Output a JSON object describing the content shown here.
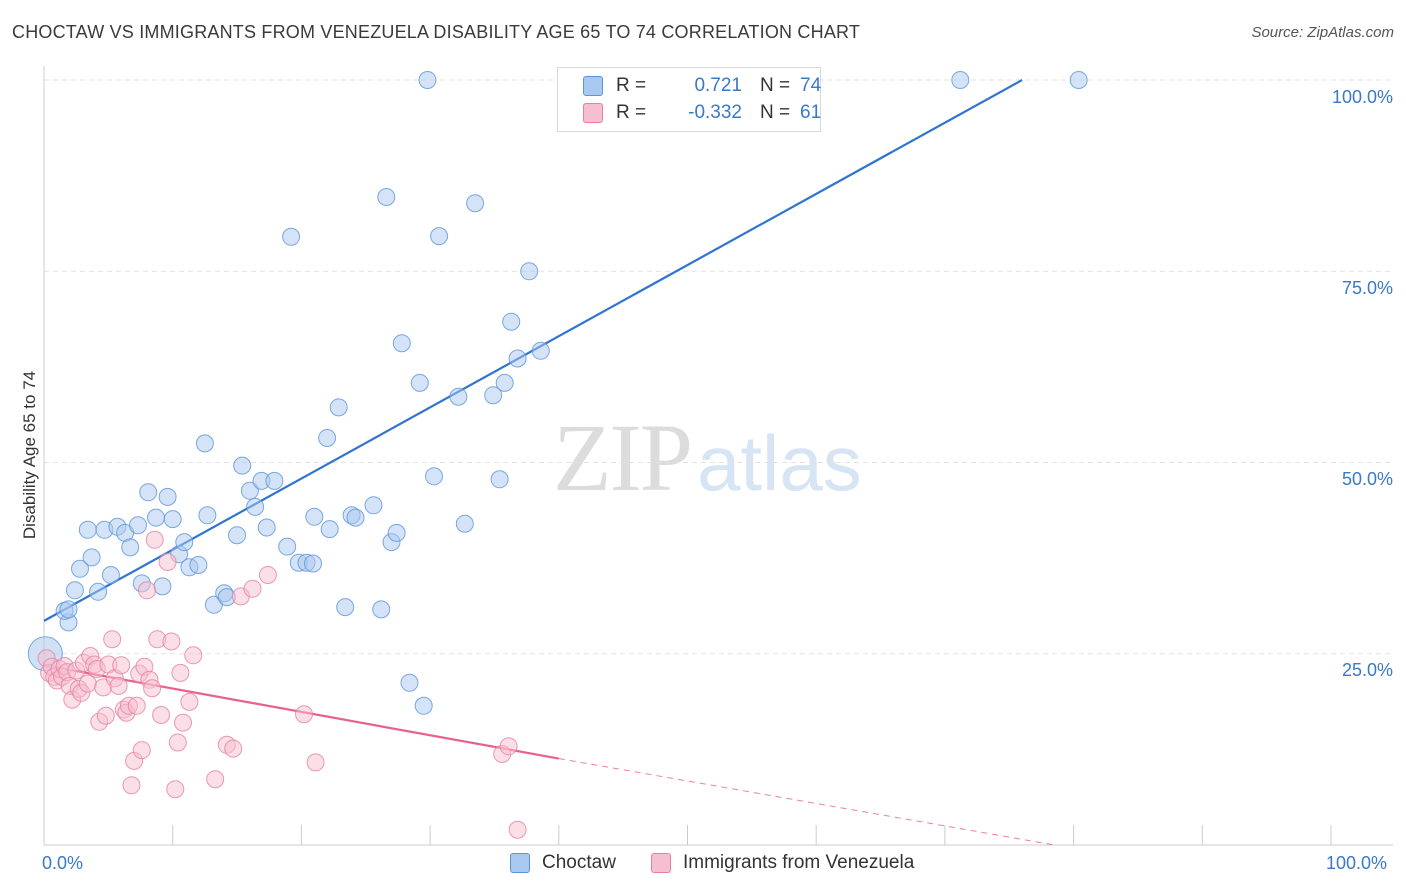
{
  "title": "CHOCTAW VS IMMIGRANTS FROM VENEZUELA DISABILITY AGE 65 TO 74 CORRELATION CHART",
  "source": "Source: ZipAtlas.com",
  "watermark": {
    "zip": "ZIP",
    "atlas": "atlas"
  },
  "legend": {
    "rows": [
      {
        "r_label": "R =",
        "r_value": "0.721",
        "n_label": "N =",
        "n_value": "74",
        "color": "#a9c8ef"
      },
      {
        "r_label": "R =",
        "r_value": "-0.332",
        "n_label": "N =",
        "n_value": "61",
        "color": "#f6bfd0"
      }
    ]
  },
  "bottom_legend": [
    {
      "label": "Choctaw",
      "color": "#a9c8ef"
    },
    {
      "label": "Immigrants from Venezuela",
      "color": "#f6bfd0"
    }
  ],
  "axes": {
    "ylabel": "Disability Age 65 to 74",
    "x_min_label": "0.0%",
    "x_max_label": "100.0%",
    "y_ticks": [
      "100.0%",
      "75.0%",
      "50.0%",
      "25.0%"
    ]
  },
  "chart_data": {
    "type": "scatter",
    "title": "CHOCTAW VS IMMIGRANTS FROM VENEZUELA DISABILITY AGE 65 TO 74 CORRELATION CHART",
    "xlabel": "",
    "ylabel": "Disability Age 65 to 74",
    "xlim": [
      0,
      100
    ],
    "ylim": [
      0,
      100
    ],
    "grid": true,
    "legend_position": "top-center",
    "series": [
      {
        "name": "Choctaw",
        "color": "#a9c8ef",
        "stroke": "#5b95d8",
        "trend": {
          "x": [
            0,
            76
          ],
          "y": [
            29.3,
            100
          ],
          "color": "#2f74cf"
        },
        "points": [
          [
            0.1,
            25.0
          ],
          [
            1.9,
            29.1
          ],
          [
            1.6,
            30.6
          ],
          [
            1.9,
            30.8
          ],
          [
            2.4,
            33.3
          ],
          [
            2.8,
            36.1
          ],
          [
            3.4,
            41.2
          ],
          [
            3.7,
            37.6
          ],
          [
            4.2,
            33.1
          ],
          [
            4.7,
            41.2
          ],
          [
            5.2,
            35.3
          ],
          [
            5.7,
            41.6
          ],
          [
            6.3,
            40.8
          ],
          [
            6.7,
            38.9
          ],
          [
            7.3,
            41.8
          ],
          [
            7.6,
            34.2
          ],
          [
            8.1,
            46.1
          ],
          [
            8.7,
            42.8
          ],
          [
            9.2,
            33.8
          ],
          [
            9.6,
            45.5
          ],
          [
            10.0,
            42.6
          ],
          [
            10.5,
            38.0
          ],
          [
            10.9,
            39.6
          ],
          [
            11.3,
            36.3
          ],
          [
            12.0,
            36.6
          ],
          [
            12.5,
            52.5
          ],
          [
            12.7,
            43.1
          ],
          [
            13.2,
            31.4
          ],
          [
            14.0,
            32.9
          ],
          [
            14.2,
            32.4
          ],
          [
            15.0,
            40.5
          ],
          [
            15.4,
            49.6
          ],
          [
            16.0,
            46.3
          ],
          [
            16.4,
            44.2
          ],
          [
            16.9,
            47.6
          ],
          [
            17.3,
            41.5
          ],
          [
            17.9,
            47.6
          ],
          [
            18.9,
            39.0
          ],
          [
            19.2,
            79.5
          ],
          [
            19.8,
            36.9
          ],
          [
            20.4,
            36.9
          ],
          [
            20.9,
            36.8
          ],
          [
            21.0,
            42.9
          ],
          [
            22.0,
            53.2
          ],
          [
            22.2,
            41.3
          ],
          [
            22.9,
            57.2
          ],
          [
            23.4,
            31.1
          ],
          [
            23.9,
            43.1
          ],
          [
            24.2,
            42.8
          ],
          [
            25.6,
            44.4
          ],
          [
            26.2,
            30.8
          ],
          [
            26.6,
            84.7
          ],
          [
            27.0,
            39.6
          ],
          [
            27.4,
            40.8
          ],
          [
            27.8,
            65.6
          ],
          [
            28.4,
            21.2
          ],
          [
            29.2,
            60.4
          ],
          [
            29.8,
            100
          ],
          [
            30.3,
            48.2
          ],
          [
            30.7,
            79.6
          ],
          [
            29.5,
            18.2
          ],
          [
            32.2,
            58.6
          ],
          [
            32.7,
            42.0
          ],
          [
            33.5,
            83.9
          ],
          [
            34.9,
            58.8
          ],
          [
            35.4,
            47.8
          ],
          [
            35.8,
            60.4
          ],
          [
            36.3,
            68.4
          ],
          [
            36.8,
            63.6
          ],
          [
            37.7,
            75.0
          ],
          [
            38.6,
            64.6
          ],
          [
            43.1,
            100
          ],
          [
            71.2,
            100
          ],
          [
            80.4,
            100
          ]
        ]
      },
      {
        "name": "Immigrants from Venezuela",
        "color": "#f6bfd0",
        "stroke": "#e87fa2",
        "trend": {
          "x": [
            0,
            40
          ],
          "y": [
            23.5,
            11.3
          ],
          "color": "#e8608d"
        },
        "trend_ext": {
          "x": [
            40,
            78.5
          ],
          "y": [
            11.3,
            0
          ]
        },
        "points": [
          [
            0.2,
            24.4
          ],
          [
            0.4,
            22.5
          ],
          [
            0.6,
            23.3
          ],
          [
            0.8,
            22.0
          ],
          [
            1.0,
            21.5
          ],
          [
            1.2,
            23.0
          ],
          [
            1.4,
            22.0
          ],
          [
            1.6,
            23.4
          ],
          [
            1.8,
            22.6
          ],
          [
            2.0,
            20.8
          ],
          [
            2.2,
            19.0
          ],
          [
            2.5,
            22.8
          ],
          [
            2.7,
            20.4
          ],
          [
            2.9,
            19.9
          ],
          [
            3.1,
            23.8
          ],
          [
            3.4,
            21.1
          ],
          [
            3.6,
            24.7
          ],
          [
            3.9,
            23.6
          ],
          [
            4.1,
            23.0
          ],
          [
            4.3,
            16.1
          ],
          [
            4.6,
            20.6
          ],
          [
            4.8,
            16.9
          ],
          [
            5.0,
            23.6
          ],
          [
            5.3,
            26.9
          ],
          [
            5.5,
            21.8
          ],
          [
            5.8,
            20.8
          ],
          [
            6.0,
            23.5
          ],
          [
            6.2,
            17.7
          ],
          [
            6.4,
            17.3
          ],
          [
            6.6,
            18.2
          ],
          [
            6.8,
            7.8
          ],
          [
            7.0,
            11.0
          ],
          [
            7.2,
            18.2
          ],
          [
            7.4,
            22.4
          ],
          [
            7.6,
            12.4
          ],
          [
            7.8,
            23.3
          ],
          [
            8.0,
            33.3
          ],
          [
            8.2,
            21.6
          ],
          [
            8.4,
            20.5
          ],
          [
            8.6,
            39.9
          ],
          [
            8.8,
            26.9
          ],
          [
            9.1,
            17.0
          ],
          [
            9.6,
            37.0
          ],
          [
            9.9,
            26.6
          ],
          [
            10.2,
            7.3
          ],
          [
            10.4,
            13.4
          ],
          [
            10.6,
            22.5
          ],
          [
            10.8,
            16.0
          ],
          [
            11.3,
            18.7
          ],
          [
            11.6,
            24.8
          ],
          [
            13.3,
            8.6
          ],
          [
            14.2,
            13.1
          ],
          [
            14.7,
            12.6
          ],
          [
            15.3,
            32.5
          ],
          [
            16.2,
            33.5
          ],
          [
            17.4,
            35.3
          ],
          [
            20.2,
            17.1
          ],
          [
            21.1,
            10.8
          ],
          [
            35.6,
            11.9
          ],
          [
            36.1,
            12.9
          ],
          [
            36.8,
            2.0
          ]
        ]
      }
    ]
  }
}
